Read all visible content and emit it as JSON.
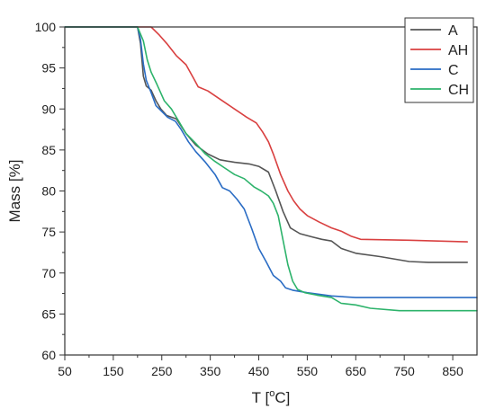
{
  "chart_data": {
    "type": "line",
    "xlabel": "T [",
    "xlabel_sup": "o",
    "xlabel_end": "C]",
    "ylabel": "Mass [%]",
    "xlim": [
      50,
      900
    ],
    "ylim": [
      60,
      100
    ],
    "xticks": [
      50,
      150,
      250,
      350,
      450,
      550,
      650,
      750,
      850
    ],
    "yticks": [
      60,
      65,
      70,
      75,
      80,
      85,
      90,
      95,
      100
    ],
    "legend_position": "top-right",
    "grid": false,
    "series": [
      {
        "name": "A",
        "color": "#555555",
        "points": [
          [
            50,
            100
          ],
          [
            200,
            100
          ],
          [
            206,
            98
          ],
          [
            212,
            94
          ],
          [
            218,
            92.8
          ],
          [
            228,
            92.3
          ],
          [
            238,
            91
          ],
          [
            248,
            90
          ],
          [
            260,
            89.2
          ],
          [
            280,
            88.8
          ],
          [
            300,
            87
          ],
          [
            320,
            85.6
          ],
          [
            345,
            84.5
          ],
          [
            370,
            83.8
          ],
          [
            400,
            83.5
          ],
          [
            430,
            83.3
          ],
          [
            450,
            83
          ],
          [
            470,
            82.3
          ],
          [
            485,
            80
          ],
          [
            500,
            77.5
          ],
          [
            515,
            75.5
          ],
          [
            535,
            74.8
          ],
          [
            560,
            74.4
          ],
          [
            580,
            74.1
          ],
          [
            600,
            73.9
          ],
          [
            620,
            73
          ],
          [
            650,
            72.4
          ],
          [
            700,
            72
          ],
          [
            760,
            71.4
          ],
          [
            800,
            71.3
          ],
          [
            880,
            71.3
          ]
        ]
      },
      {
        "name": "AH",
        "color": "#d94040",
        "points": [
          [
            50,
            100
          ],
          [
            200,
            100
          ],
          [
            228,
            100
          ],
          [
            245,
            99
          ],
          [
            260,
            98
          ],
          [
            280,
            96.5
          ],
          [
            300,
            95.4
          ],
          [
            315,
            93.8
          ],
          [
            325,
            92.7
          ],
          [
            345,
            92.2
          ],
          [
            370,
            91.2
          ],
          [
            400,
            90
          ],
          [
            425,
            89
          ],
          [
            445,
            88.3
          ],
          [
            458,
            87.2
          ],
          [
            470,
            86
          ],
          [
            480,
            84.5
          ],
          [
            495,
            82
          ],
          [
            510,
            80
          ],
          [
            522,
            78.8
          ],
          [
            535,
            77.8
          ],
          [
            550,
            77
          ],
          [
            575,
            76.2
          ],
          [
            600,
            75.5
          ],
          [
            620,
            75.1
          ],
          [
            640,
            74.5
          ],
          [
            660,
            74.1
          ],
          [
            760,
            74
          ],
          [
            880,
            73.8
          ]
        ]
      },
      {
        "name": "C",
        "color": "#2a6cc4",
        "points": [
          [
            50,
            100
          ],
          [
            200,
            100
          ],
          [
            206,
            98.5
          ],
          [
            212,
            95.5
          ],
          [
            218,
            93.5
          ],
          [
            228,
            92
          ],
          [
            238,
            90.4
          ],
          [
            250,
            89.7
          ],
          [
            262,
            89
          ],
          [
            278,
            88.5
          ],
          [
            290,
            87.5
          ],
          [
            305,
            86
          ],
          [
            320,
            84.8
          ],
          [
            340,
            83.5
          ],
          [
            360,
            82
          ],
          [
            375,
            80.4
          ],
          [
            390,
            80
          ],
          [
            405,
            79
          ],
          [
            420,
            77.8
          ],
          [
            435,
            75.5
          ],
          [
            450,
            73
          ],
          [
            465,
            71.4
          ],
          [
            480,
            69.7
          ],
          [
            495,
            69
          ],
          [
            505,
            68.2
          ],
          [
            520,
            67.9
          ],
          [
            550,
            67.6
          ],
          [
            600,
            67.2
          ],
          [
            650,
            67
          ],
          [
            800,
            67
          ],
          [
            900,
            67
          ]
        ]
      },
      {
        "name": "CH",
        "color": "#2db36b",
        "points": [
          [
            50,
            100
          ],
          [
            200,
            100
          ],
          [
            205,
            99.3
          ],
          [
            212,
            98.3
          ],
          [
            220,
            96
          ],
          [
            228,
            94.5
          ],
          [
            240,
            93
          ],
          [
            255,
            91
          ],
          [
            270,
            90
          ],
          [
            285,
            88.5
          ],
          [
            300,
            87
          ],
          [
            320,
            85.8
          ],
          [
            340,
            84.5
          ],
          [
            360,
            83.6
          ],
          [
            380,
            82.8
          ],
          [
            400,
            82
          ],
          [
            420,
            81.5
          ],
          [
            440,
            80.5
          ],
          [
            455,
            80
          ],
          [
            470,
            79.4
          ],
          [
            480,
            78.5
          ],
          [
            490,
            77
          ],
          [
            500,
            74
          ],
          [
            510,
            71
          ],
          [
            520,
            69
          ],
          [
            530,
            68
          ],
          [
            545,
            67.6
          ],
          [
            570,
            67.3
          ],
          [
            600,
            67
          ],
          [
            620,
            66.3
          ],
          [
            650,
            66.1
          ],
          [
            680,
            65.7
          ],
          [
            740,
            65.4
          ],
          [
            800,
            65.4
          ],
          [
            900,
            65.4
          ]
        ]
      }
    ]
  }
}
